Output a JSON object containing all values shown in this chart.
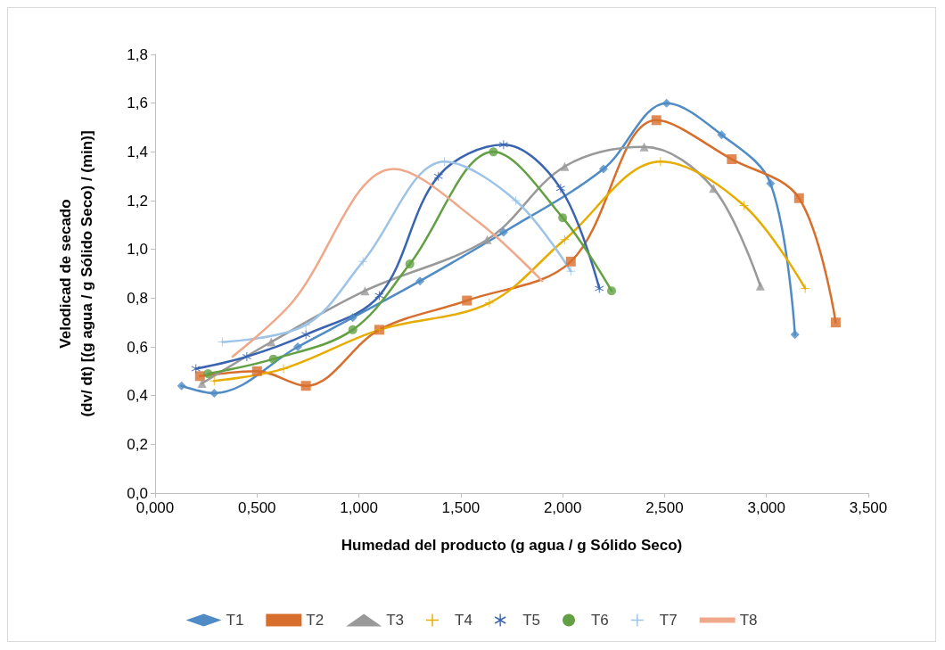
{
  "chart_data": {
    "type": "line",
    "xlabel": "Humedad del producto (g agua / g Sólido Seco)",
    "ylabel": "Velodicad de secado\n(dv/ dt) [(g agua / g Sólido Seco) / (min)]",
    "xlim": [
      0,
      3.5
    ],
    "xticks": [
      {
        "value": 0,
        "label": "0,000"
      },
      {
        "value": 0.5,
        "label": "0,500"
      },
      {
        "value": 1,
        "label": "1,000"
      },
      {
        "value": 1.5,
        "label": "1,500"
      },
      {
        "value": 2,
        "label": "2,000"
      },
      {
        "value": 2.5,
        "label": "2,500"
      },
      {
        "value": 3,
        "label": "3,000"
      },
      {
        "value": 3.5,
        "label": "3,500"
      }
    ],
    "ylim": [
      0,
      1.8
    ],
    "yticks": [
      {
        "value": 0,
        "label": "0,0"
      },
      {
        "value": 0.2,
        "label": "0,2"
      },
      {
        "value": 0.4,
        "label": "0,4"
      },
      {
        "value": 0.6,
        "label": "0,6"
      },
      {
        "value": 0.8,
        "label": "0,8"
      },
      {
        "value": 1,
        "label": "1,0"
      },
      {
        "value": 1.2,
        "label": "1,2"
      },
      {
        "value": 1.4,
        "label": "1,4"
      },
      {
        "value": 1.6,
        "label": "1,6"
      },
      {
        "value": 1.8,
        "label": "1,8"
      }
    ],
    "grid": false,
    "legend": "bottom",
    "line_style": "solid",
    "series": [
      {
        "name": "T1",
        "color": "#4f8bc4",
        "marker": "diamond",
        "x": [
          0.13,
          0.29,
          0.7,
          0.97,
          1.3,
          1.71,
          2.2,
          2.51,
          2.78,
          3.02,
          3.14
        ],
        "values": [
          0.44,
          0.41,
          0.6,
          0.72,
          0.87,
          1.07,
          1.33,
          1.6,
          1.47,
          1.27,
          0.65
        ]
      },
      {
        "name": "T2",
        "color": "#d86e2c",
        "marker": "square",
        "x": [
          0.22,
          0.5,
          0.74,
          1.1,
          1.53,
          2.04,
          2.46,
          2.83,
          3.16,
          3.34
        ],
        "values": [
          0.48,
          0.5,
          0.44,
          0.67,
          0.79,
          0.95,
          1.53,
          1.37,
          1.21,
          0.7
        ]
      },
      {
        "name": "T3",
        "color": "#999999",
        "marker": "triangle",
        "x": [
          0.23,
          0.57,
          1.03,
          1.63,
          2.01,
          2.4,
          2.74,
          2.97
        ],
        "values": [
          0.45,
          0.62,
          0.83,
          1.04,
          1.34,
          1.42,
          1.25,
          0.85
        ]
      },
      {
        "name": "T4",
        "color": "#e6ac00",
        "marker": "cross",
        "x": [
          0.29,
          0.63,
          1.1,
          1.64,
          2.01,
          2.48,
          2.89,
          3.19
        ],
        "values": [
          0.46,
          0.51,
          0.67,
          0.78,
          1.04,
          1.36,
          1.18,
          0.84
        ]
      },
      {
        "name": "T5",
        "color": "#3b64b0",
        "marker": "star",
        "x": [
          0.2,
          0.45,
          0.74,
          1.1,
          1.39,
          1.71,
          1.99,
          2.18
        ],
        "values": [
          0.51,
          0.56,
          0.65,
          0.81,
          1.3,
          1.43,
          1.25,
          0.84
        ]
      },
      {
        "name": "T6",
        "color": "#62a043",
        "marker": "circle",
        "x": [
          0.26,
          0.58,
          0.97,
          1.25,
          1.66,
          2.0,
          2.24
        ],
        "values": [
          0.49,
          0.55,
          0.67,
          0.94,
          1.4,
          1.13,
          0.83
        ]
      },
      {
        "name": "T7",
        "color": "#9dc3e6",
        "marker": "cross",
        "x": [
          0.33,
          0.74,
          1.02,
          1.42,
          1.77,
          2.04
        ],
        "values": [
          0.62,
          0.69,
          0.95,
          1.36,
          1.2,
          0.91
        ]
      },
      {
        "name": "T8",
        "color": "#f0a88a",
        "marker": "none",
        "x": [
          0.38,
          0.67,
          1.17,
          1.59,
          1.9
        ],
        "values": [
          0.56,
          0.78,
          1.33,
          1.11,
          0.87
        ]
      }
    ]
  }
}
